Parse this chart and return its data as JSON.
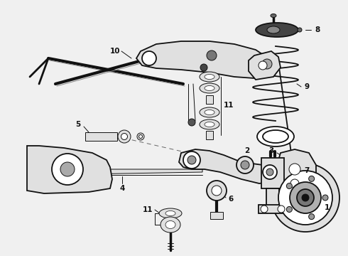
{
  "bg_color": "#f0f0f0",
  "line_color": "#1a1a1a",
  "fig_width": 4.9,
  "fig_height": 3.6,
  "dpi": 100,
  "white": "#ffffff",
  "gray_light": "#e0e0e0",
  "gray_mid": "#b0b0b0",
  "gray_dark": "#555555",
  "black": "#111111"
}
